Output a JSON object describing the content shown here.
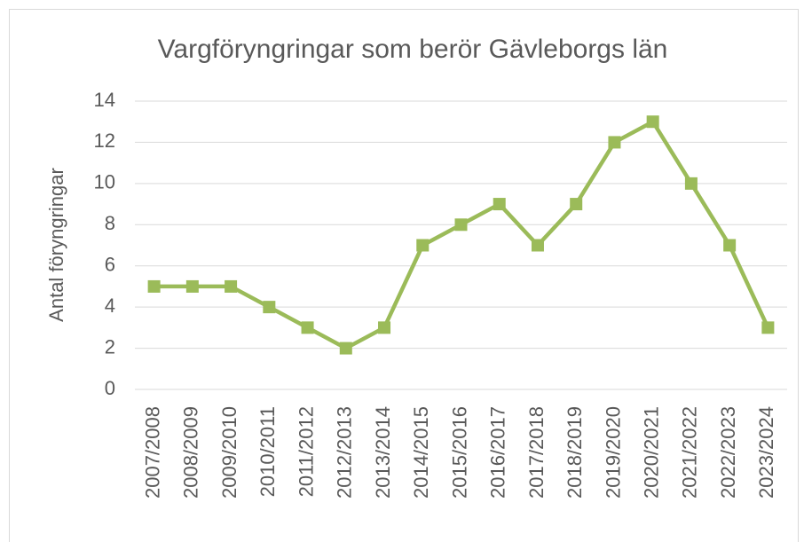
{
  "chart_data": {
    "type": "line",
    "title": "Vargföryngringar som berör Gävleborgs län",
    "y_label": "Antal föryngringar",
    "categories": [
      "2007/2008",
      "2008/2009",
      "2009/2010",
      "2010/2011",
      "2011/2012",
      "2012/2013",
      "2013/2014",
      "2014/2015",
      "2015/2016",
      "2016/2017",
      "2017/2018",
      "2018/2019",
      "2019/2020",
      "2020/2021",
      "2021/2022",
      "2022/2023",
      "2023/2024"
    ],
    "values": [
      5,
      5,
      5,
      4,
      3,
      2,
      3,
      7,
      8,
      9,
      7,
      9,
      12,
      13,
      10,
      7,
      3
    ],
    "color": "#9bbb59",
    "ylim": [
      0,
      14
    ],
    "yticks": [
      0,
      2,
      4,
      6,
      8,
      10,
      12,
      14
    ],
    "grid": true
  }
}
